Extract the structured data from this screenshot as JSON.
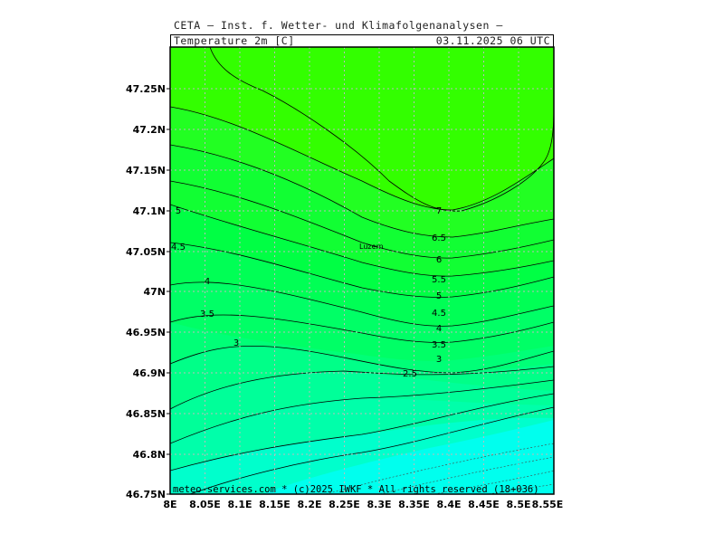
{
  "header": {
    "institution": "CETA – Inst. f. Wetter- und Klimafolgenanalysen –",
    "variable": "Temperature_2m_[C]",
    "datetime": "03.11.2025 06 UTC"
  },
  "map": {
    "lon_range": [
      8.0,
      8.55
    ],
    "lat_range": [
      46.75,
      47.3
    ],
    "x_ticks": [
      "8E",
      "8.05E",
      "8.1E",
      "8.15E",
      "8.2E",
      "8.25E",
      "8.3E",
      "8.35E",
      "8.4E",
      "8.45E",
      "8.5E",
      "8.55E"
    ],
    "y_ticks": [
      "47.25N",
      "47.2N",
      "47.15N",
      "47.1N",
      "47.05N",
      "47N",
      "46.95N",
      "46.9N",
      "46.85N",
      "46.8N",
      "46.75N"
    ],
    "gridlines": true,
    "city": {
      "name": "Luzern",
      "lon": 8.31,
      "lat": 47.05
    },
    "colors": {
      "warm": "#33ff00",
      "mid": "#00ff55",
      "cool": "#00ff99",
      "coolest": "#00ffdd"
    }
  },
  "contour_labels": [
    "7",
    "6.5",
    "6",
    "5.5",
    "5",
    "4.5",
    "4",
    "3.5",
    "3",
    "2.5",
    "5",
    "4.5",
    "4",
    "3.5",
    "3"
  ],
  "footer": "meteo-services.com * (c)2025 IWKF * All rights reserved (18+036)"
}
